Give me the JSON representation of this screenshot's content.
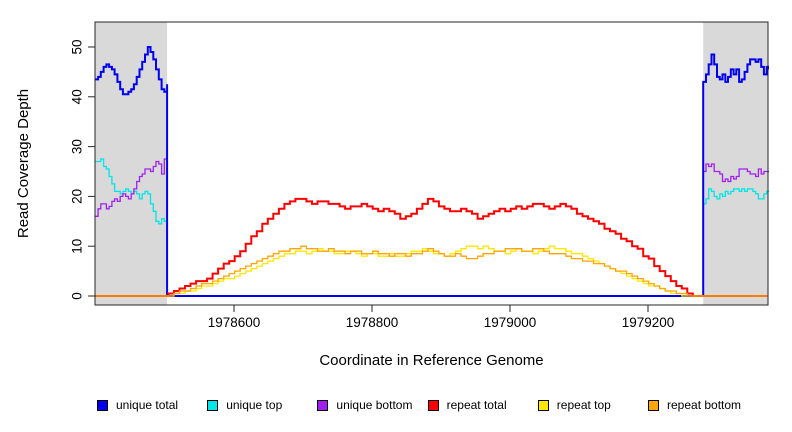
{
  "chart_data": {
    "type": "line",
    "title": "",
    "xlabel": "Coordinate in Reference Genome",
    "ylabel": "Read Coverage Depth",
    "x_ticks": [
      1978600,
      1978800,
      1979000,
      1979200
    ],
    "y_ticks": [
      0,
      10,
      20,
      30,
      40,
      50
    ],
    "xlim": [
      1978399,
      1979374
    ],
    "ylim": [
      0,
      50
    ],
    "grid": false,
    "legend_position": "bottom",
    "shade_color": "#D9D9D9",
    "shaded_regions": [
      [
        1978399,
        1978503
      ],
      [
        1979280,
        1979374
      ]
    ],
    "series": [
      {
        "name": "unique top",
        "color": "#00E5E5",
        "width": 1.3,
        "segments": [
          {
            "start": 1978399,
            "step": 4,
            "values": [
              27,
              27,
              27.5,
              26,
              25.5,
              24,
              22.5,
              21,
              21,
              20.5,
              21,
              21.5,
              21,
              20.5,
              21,
              20.5,
              19.5,
              20.5,
              21,
              20.5,
              18.5,
              17,
              15,
              14.5,
              15.5,
              15,
              16.5
            ]
          },
          {
            "start": 1978503,
            "step": 777,
            "values": [
              0,
              0
            ]
          },
          {
            "start": 1979280,
            "step": 4,
            "values": [
              18.5,
              19.5,
              21.5,
              21,
              20,
              19.5,
              20.5,
              20,
              21,
              20.5,
              21,
              21.5,
              21.5,
              21,
              21.5,
              21,
              21.5,
              21.5,
              21,
              20.5,
              19.5,
              19.5,
              20.5,
              21,
              21
            ]
          }
        ]
      },
      {
        "name": "unique bottom",
        "color": "#A020F0",
        "width": 1.3,
        "segments": [
          {
            "start": 1978399,
            "step": 4,
            "values": [
              16,
              17.5,
              18.5,
              18.5,
              17.5,
              18,
              19,
              19.5,
              19,
              20,
              20.5,
              20,
              19.5,
              20.5,
              21.5,
              23,
              24,
              24.5,
              25.5,
              25.5,
              25,
              26,
              27,
              26.5,
              24.5,
              27.5,
              25
            ]
          },
          {
            "start": 1978503,
            "step": 777,
            "values": [
              0,
              0
            ]
          },
          {
            "start": 1979280,
            "step": 4,
            "values": [
              25,
              26.5,
              26,
              26.5,
              25,
              25,
              24.5,
              23,
              23.5,
              23,
              24,
              23.5,
              24,
              25.5,
              25.5,
              25.5,
              25,
              24.5,
              24.5,
              24,
              25.5,
              24.5,
              25,
              25,
              25
            ]
          }
        ]
      },
      {
        "name": "unique total",
        "color": "#0000EE",
        "width": 2,
        "segments": [
          {
            "start": 1978399,
            "step": 4,
            "values": [
              43.5,
              44,
              45,
              46,
              46.5,
              46,
              45.5,
              44.5,
              43,
              41.5,
              40.5,
              40.5,
              41,
              41.5,
              42.5,
              44,
              45.5,
              47,
              48.5,
              50,
              49,
              47.5,
              45.5,
              43.5,
              41.5,
              41,
              42.5
            ]
          },
          {
            "start": 1978503,
            "step": 777,
            "values": [
              0,
              0
            ]
          },
          {
            "start": 1979280,
            "step": 4,
            "values": [
              43,
              44.5,
              46.5,
              48.5,
              46.5,
              44,
              43.5,
              44.5,
              43,
              44,
              45.5,
              44.5,
              45.5,
              43,
              43.5,
              45,
              46.5,
              47.5,
              47.5,
              47,
              47.5,
              46,
              44.5,
              46,
              45.5
            ]
          }
        ]
      },
      {
        "name": "repeat total",
        "color": "#FF0000",
        "width": 2,
        "segments": [
          {
            "start": 1978399,
            "step": 106,
            "values": [
              0,
              0
            ]
          },
          {
            "start": 1978505,
            "step": 8,
            "values": [
              0.5,
              1,
              1.5,
              2,
              2.5,
              3,
              3,
              3.5,
              4.5,
              5.5,
              6.5,
              7,
              8,
              9,
              10.5,
              12,
              13,
              14.5,
              15.5,
              16.5,
              17.5,
              18.5,
              19,
              19.5,
              19.5,
              19,
              18.5,
              19,
              19,
              18.5,
              18.5,
              18,
              17.5,
              18,
              18,
              18.5,
              18,
              17.5,
              17,
              17.5,
              17,
              16.5,
              15.5,
              16,
              16.5,
              17.5,
              18.5,
              19.5,
              19,
              18,
              17.5,
              17,
              17,
              17.5,
              17,
              16.5,
              15.5,
              16,
              16.5,
              17,
              17.5,
              17,
              17.5,
              18,
              17.5,
              18,
              18.5,
              18.5,
              18,
              17.5,
              18,
              18.5,
              18,
              17.5,
              16.5,
              16,
              15.5,
              15,
              14.5,
              13.5,
              13,
              12.5,
              11.5,
              11,
              10,
              9.5,
              8,
              7.5,
              6,
              5,
              4,
              3,
              2,
              1.5,
              0.5,
              0
            ]
          },
          {
            "start": 1979265,
            "step": 109,
            "values": [
              0,
              0
            ]
          }
        ]
      },
      {
        "name": "repeat top",
        "color": "#FFE800",
        "width": 1.3,
        "segments": [
          {
            "start": 1978399,
            "step": 106,
            "values": [
              0,
              0
            ]
          },
          {
            "start": 1978505,
            "step": 8,
            "values": [
              0,
              0.5,
              0.5,
              1,
              1,
              1.5,
              2,
              2,
              2.5,
              3,
              3.5,
              3.5,
              4,
              4.5,
              5,
              5.5,
              6,
              6.5,
              7,
              7.5,
              8,
              8.5,
              8.5,
              9,
              9,
              8.5,
              9,
              9.5,
              9,
              9,
              8.5,
              8.5,
              9,
              9,
              8.5,
              8,
              8.5,
              8.5,
              8,
              8,
              8.5,
              8,
              8,
              8.5,
              9,
              9,
              9.5,
              9,
              8.5,
              8.5,
              8,
              8.5,
              9,
              9.5,
              10,
              10,
              9.5,
              10,
              9.5,
              9,
              9,
              8.5,
              9,
              9.5,
              9,
              9,
              8.5,
              9,
              9.5,
              10,
              9.5,
              9.5,
              9,
              8.5,
              8.5,
              8,
              7.5,
              7,
              6.5,
              6,
              5.5,
              5,
              4.5,
              4,
              3.5,
              3,
              2.5,
              2,
              2,
              1.5,
              1,
              0.5,
              0.5,
              0,
              0,
              0
            ]
          },
          {
            "start": 1979265,
            "step": 109,
            "values": [
              0,
              0
            ]
          }
        ]
      },
      {
        "name": "repeat bottom",
        "color": "#FFA500",
        "width": 1.3,
        "segments": [
          {
            "start": 1978399,
            "step": 106,
            "values": [
              0,
              0
            ]
          },
          {
            "start": 1978505,
            "step": 8,
            "values": [
              0,
              0.5,
              1,
              1,
              1.5,
              2,
              2.5,
              2.5,
              3,
              3.5,
              4,
              4.5,
              5,
              5.5,
              6,
              6.5,
              7,
              7.5,
              8,
              8.5,
              9,
              9,
              9.5,
              9.5,
              10,
              9.5,
              9.5,
              9,
              9,
              9.5,
              9,
              9,
              8.5,
              9,
              9,
              8.5,
              8.5,
              9,
              8.5,
              8.5,
              8,
              8.5,
              8.5,
              8,
              8.5,
              8.5,
              9,
              9.5,
              9,
              8.5,
              8,
              8,
              8.5,
              8,
              7.5,
              7.5,
              8,
              8.5,
              8.5,
              9,
              9,
              9.5,
              9.5,
              9.5,
              9,
              9,
              9.5,
              9.5,
              9,
              8.5,
              8.5,
              8.5,
              8,
              7.5,
              7.5,
              7,
              7,
              6.5,
              6.5,
              6,
              5.5,
              5,
              5,
              4.5,
              4,
              3.5,
              3,
              2.5,
              2,
              1.5,
              1,
              1,
              0.5,
              0.5,
              0,
              0
            ]
          },
          {
            "start": 1979265,
            "step": 109,
            "values": [
              0,
              0
            ]
          }
        ]
      }
    ]
  },
  "legend": {
    "items": [
      {
        "label": "unique total",
        "color": "#0000EE"
      },
      {
        "label": "unique top",
        "color": "#00E5E5"
      },
      {
        "label": "unique bottom",
        "color": "#A020F0"
      },
      {
        "label": "repeat total",
        "color": "#FF0000"
      },
      {
        "label": "repeat top",
        "color": "#FFE800"
      },
      {
        "label": "repeat bottom",
        "color": "#FFA500"
      }
    ]
  }
}
